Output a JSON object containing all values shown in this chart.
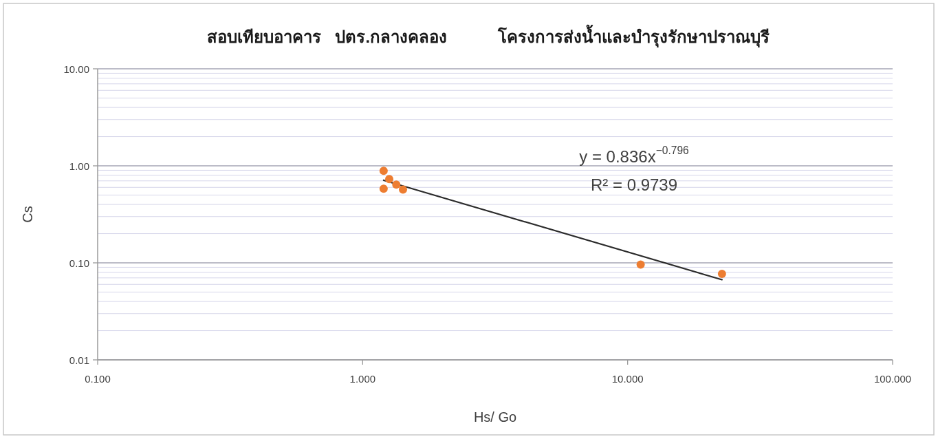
{
  "chart_data": {
    "type": "scatter",
    "title": "สอบเทียบอาคาร   ปตร.กลางคลอง           โครงการส่งน้ำและบำรุงรักษาปราณบุรี",
    "xlabel": "Hs/ Go",
    "ylabel": "Cs",
    "log": "xy",
    "xlim": [
      0.1,
      100
    ],
    "ylim": [
      0.01,
      10
    ],
    "xticks": [
      {
        "value": 0.1,
        "label": "0.100"
      },
      {
        "value": 1,
        "label": "1.000"
      },
      {
        "value": 10,
        "label": "10.000"
      },
      {
        "value": 100,
        "label": "100.000"
      }
    ],
    "yticks": [
      {
        "value": 0.01,
        "label": "0.01"
      },
      {
        "value": 0.1,
        "label": "0.10"
      },
      {
        "value": 1,
        "label": "1.00"
      },
      {
        "value": 10,
        "label": "10.00"
      }
    ],
    "grid": "y",
    "series": [
      {
        "type": "scatter",
        "marker": "circle",
        "color": "#ed7d31",
        "x": [
          1.2,
          1.26,
          1.34,
          1.2,
          1.42,
          11.2,
          22.7
        ],
        "values": [
          0.89,
          0.73,
          0.64,
          0.58,
          0.57,
          0.096,
          0.077
        ]
      },
      {
        "type": "line",
        "marker": "none",
        "line_style": "solid",
        "color": "#2b2b2b",
        "x": [
          1.2,
          22.7
        ],
        "values": [
          0.71,
          0.067
        ]
      }
    ],
    "annotations": [
      "y = 0.836x$^{−0.796}$",
      "R² = 0.9739"
    ]
  }
}
